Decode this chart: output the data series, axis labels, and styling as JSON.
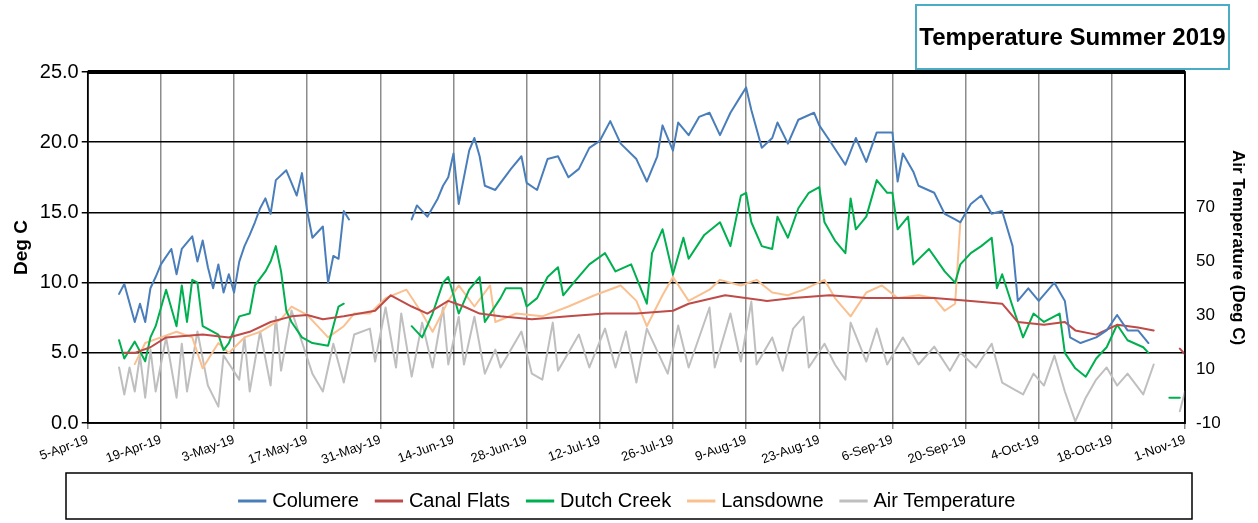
{
  "chart_data": {
    "type": "line",
    "title": "Temperature Summer 2019",
    "ylabel": "Deg C",
    "y2label": "Air Temperature (Deg C)",
    "xlim": [
      "2019-04-05",
      "2019-11-01"
    ],
    "xticks": [
      {
        "value": "2019-04-05",
        "label": "5-Apr-19"
      },
      {
        "value": "2019-04-19",
        "label": "19-Apr-19"
      },
      {
        "value": "2019-05-03",
        "label": "3-May-19"
      },
      {
        "value": "2019-05-17",
        "label": "17-May-19"
      },
      {
        "value": "2019-05-31",
        "label": "31-May-19"
      },
      {
        "value": "2019-06-14",
        "label": "14-Jun-19"
      },
      {
        "value": "2019-06-28",
        "label": "28-Jun-19"
      },
      {
        "value": "2019-07-12",
        "label": "12-Jul-19"
      },
      {
        "value": "2019-07-26",
        "label": "26-Jul-19"
      },
      {
        "value": "2019-08-09",
        "label": "9-Aug-19"
      },
      {
        "value": "2019-08-23",
        "label": "23-Aug-19"
      },
      {
        "value": "2019-09-06",
        "label": "6-Sep-19"
      },
      {
        "value": "2019-09-20",
        "label": "20-Sep-19"
      },
      {
        "value": "2019-10-04",
        "label": "4-Oct-19"
      },
      {
        "value": "2019-10-18",
        "label": "18-Oct-19"
      },
      {
        "value": "2019-11-01",
        "label": "1-Nov-19"
      }
    ],
    "ylim": [
      0,
      25
    ],
    "yticks": [
      {
        "value": 0,
        "label": "0.0"
      },
      {
        "value": 5,
        "label": "5.0"
      },
      {
        "value": 10,
        "label": "10.0"
      },
      {
        "value": 15,
        "label": "15.0"
      },
      {
        "value": 20,
        "label": "20.0"
      },
      {
        "value": 25,
        "label": "25.0"
      }
    ],
    "y2lim": [
      -10,
      120
    ],
    "y2ticks": [
      -10,
      10,
      30,
      50,
      70
    ],
    "grid": true,
    "legend": "bottom",
    "series": [
      {
        "name": "Columere",
        "color": "#4a7ebb",
        "x": [
          "2019-04-11",
          "2019-04-12",
          "2019-04-14",
          "2019-04-15",
          "2019-04-16",
          "2019-04-17",
          "2019-04-18",
          "2019-04-19",
          "2019-04-21",
          "2019-04-22",
          "2019-04-23",
          "2019-04-25",
          "2019-04-26",
          "2019-04-27",
          "2019-04-28",
          "2019-04-29",
          "2019-04-30",
          "2019-05-01",
          "2019-05-02",
          "2019-05-03",
          "2019-05-04",
          "2019-05-05",
          "2019-05-06",
          "2019-05-07",
          "2019-05-08",
          "2019-05-09",
          "2019-05-10",
          "2019-05-11",
          "2019-05-13",
          "2019-05-14",
          "2019-05-15",
          "2019-05-16",
          "2019-05-17",
          "2019-05-18",
          "2019-05-20",
          "2019-05-21",
          "2019-05-22",
          "2019-05-23",
          "2019-05-24",
          "2019-05-25",
          "2019-05-30",
          "2019-06-06",
          "2019-06-07",
          "2019-06-09",
          "2019-06-11",
          "2019-06-12",
          "2019-06-13",
          "2019-06-14",
          "2019-06-15",
          "2019-06-17",
          "2019-06-18",
          "2019-06-19",
          "2019-06-20",
          "2019-06-22",
          "2019-06-25",
          "2019-06-27",
          "2019-06-28",
          "2019-06-30",
          "2019-07-02",
          "2019-07-04",
          "2019-07-06",
          "2019-07-08",
          "2019-07-10",
          "2019-07-12",
          "2019-07-14",
          "2019-07-16",
          "2019-07-19",
          "2019-07-21",
          "2019-07-23",
          "2019-07-24",
          "2019-07-26",
          "2019-07-27",
          "2019-07-29",
          "2019-07-31",
          "2019-08-02",
          "2019-08-04",
          "2019-08-06",
          "2019-08-08",
          "2019-08-09",
          "2019-08-10",
          "2019-08-12",
          "2019-08-14",
          "2019-08-15",
          "2019-08-17",
          "2019-08-19",
          "2019-08-22",
          "2019-08-23",
          "2019-08-25",
          "2019-08-28",
          "2019-08-30",
          "2019-09-01",
          "2019-09-03",
          "2019-09-06",
          "2019-09-07",
          "2019-09-08",
          "2019-09-10",
          "2019-09-11",
          "2019-09-14",
          "2019-09-16",
          "2019-09-18",
          "2019-09-19",
          "2019-09-21",
          "2019-09-23",
          "2019-09-25",
          "2019-09-27",
          "2019-09-29",
          "2019-09-30",
          "2019-10-02",
          "2019-10-04",
          "2019-10-07",
          "2019-10-09",
          "2019-10-10",
          "2019-10-12",
          "2019-10-15",
          "2019-10-17",
          "2019-10-19",
          "2019-10-21",
          "2019-10-23",
          "2019-10-25"
        ],
        "values": [
          9.2,
          9.9,
          7.2,
          8.5,
          7.2,
          9.6,
          10.4,
          11.3,
          12.4,
          10.6,
          12.4,
          13.3,
          11.5,
          13.0,
          11.1,
          9.6,
          11.3,
          9.3,
          10.6,
          9.3,
          11.5,
          12.6,
          13.4,
          14.3,
          15.3,
          16.0,
          14.9,
          17.3,
          18.0,
          17.1,
          16.2,
          17.8,
          15.1,
          13.2,
          14.0,
          10.0,
          11.9,
          11.7,
          15.1,
          14.5,
          null,
          14.5,
          15.5,
          14.7,
          16.0,
          16.9,
          17.5,
          19.2,
          15.6,
          19.4,
          20.3,
          19.0,
          16.9,
          16.6,
          18.1,
          19.0,
          17.1,
          16.6,
          18.8,
          19.0,
          17.5,
          18.1,
          19.6,
          20.1,
          21.5,
          19.9,
          18.8,
          17.2,
          19.0,
          21.2,
          19.4,
          21.4,
          20.5,
          21.8,
          22.1,
          20.5,
          22.1,
          23.3,
          23.9,
          22.3,
          19.6,
          20.3,
          21.4,
          19.9,
          21.6,
          22.1,
          21.2,
          20.1,
          18.4,
          20.3,
          18.6,
          20.7,
          20.7,
          17.2,
          19.2,
          17.9,
          16.9,
          16.4,
          14.9,
          14.5,
          14.3,
          15.6,
          16.2,
          14.9,
          15.1,
          12.6,
          8.7,
          9.6,
          8.7,
          10.0,
          8.7,
          6.1,
          5.7,
          6.1,
          6.6,
          7.7,
          6.6,
          6.6,
          5.7
        ]
      },
      {
        "name": "Canal Flats",
        "color": "#be4b48",
        "x": [
          "2019-04-12",
          "2019-04-14",
          "2019-04-17",
          "2019-04-20",
          "2019-04-27",
          "2019-05-02",
          "2019-05-06",
          "2019-05-10",
          "2019-05-14",
          "2019-05-17",
          "2019-05-20",
          "2019-05-24",
          "2019-05-27",
          "2019-05-30",
          "2019-06-02",
          "2019-06-06",
          "2019-06-09",
          "2019-06-13",
          "2019-06-16",
          "2019-06-19",
          "2019-06-23",
          "2019-06-29",
          "2019-07-06",
          "2019-07-13",
          "2019-07-19",
          "2019-07-26",
          "2019-07-29",
          "2019-08-05",
          "2019-08-13",
          "2019-08-18",
          "2019-08-25",
          "2019-09-01",
          "2019-09-11",
          "2019-09-14",
          "2019-09-21",
          "2019-09-27",
          "2019-09-30",
          "2019-10-05",
          "2019-10-09",
          "2019-10-11",
          "2019-10-15",
          "2019-10-19",
          "2019-10-23",
          "2019-10-26",
          "2019-10-28",
          "2019-10-31",
          "2019-11-01"
        ],
        "values": [
          5.0,
          5.0,
          5.4,
          6.1,
          6.3,
          6.1,
          6.5,
          7.2,
          7.6,
          7.7,
          7.4,
          7.6,
          7.8,
          8.0,
          9.1,
          8.3,
          7.8,
          8.7,
          8.3,
          7.8,
          7.6,
          7.4,
          7.6,
          7.8,
          7.8,
          8.0,
          8.5,
          9.1,
          8.7,
          8.9,
          9.1,
          8.9,
          8.9,
          8.9,
          8.7,
          8.5,
          7.2,
          7.0,
          7.2,
          6.6,
          6.3,
          7.0,
          6.8,
          6.6,
          null,
          5.3,
          4.9
        ]
      },
      {
        "name": "Dutch Creek",
        "color": "#00b050",
        "x": [
          "2019-04-11",
          "2019-04-12",
          "2019-04-14",
          "2019-04-16",
          "2019-04-17",
          "2019-04-18",
          "2019-04-20",
          "2019-04-22",
          "2019-04-23",
          "2019-04-24",
          "2019-04-25",
          "2019-04-26",
          "2019-04-27",
          "2019-04-30",
          "2019-05-01",
          "2019-05-02",
          "2019-05-04",
          "2019-05-06",
          "2019-05-07",
          "2019-05-09",
          "2019-05-10",
          "2019-05-11",
          "2019-05-12",
          "2019-05-13",
          "2019-05-14",
          "2019-05-16",
          "2019-05-18",
          "2019-05-21",
          "2019-05-23",
          "2019-05-24",
          "2019-05-30",
          "2019-06-06",
          "2019-06-08",
          "2019-06-10",
          "2019-06-12",
          "2019-06-13",
          "2019-06-15",
          "2019-06-17",
          "2019-06-19",
          "2019-06-20",
          "2019-06-23",
          "2019-06-24",
          "2019-06-27",
          "2019-06-28",
          "2019-06-30",
          "2019-07-02",
          "2019-07-04",
          "2019-07-05",
          "2019-07-07",
          "2019-07-10",
          "2019-07-13",
          "2019-07-15",
          "2019-07-18",
          "2019-07-21",
          "2019-07-22",
          "2019-07-24",
          "2019-07-26",
          "2019-07-28",
          "2019-07-29",
          "2019-08-01",
          "2019-08-04",
          "2019-08-06",
          "2019-08-08",
          "2019-08-09",
          "2019-08-10",
          "2019-08-12",
          "2019-08-14",
          "2019-08-15",
          "2019-08-17",
          "2019-08-19",
          "2019-08-21",
          "2019-08-23",
          "2019-08-24",
          "2019-08-26",
          "2019-08-28",
          "2019-08-29",
          "2019-08-30",
          "2019-09-01",
          "2019-09-03",
          "2019-09-05",
          "2019-09-06",
          "2019-09-07",
          "2019-09-09",
          "2019-09-10",
          "2019-09-13",
          "2019-09-16",
          "2019-09-18",
          "2019-09-19",
          "2019-09-21",
          "2019-09-23",
          "2019-09-25",
          "2019-09-26",
          "2019-09-27",
          "2019-09-29",
          "2019-10-01",
          "2019-10-03",
          "2019-10-05",
          "2019-10-08",
          "2019-10-09",
          "2019-10-11",
          "2019-10-13",
          "2019-10-15",
          "2019-10-17",
          "2019-10-19",
          "2019-10-21",
          "2019-10-24",
          "2019-10-25",
          "2019-10-27",
          "2019-10-29",
          "2019-10-31"
        ],
        "values": [
          5.9,
          4.6,
          5.8,
          4.4,
          6.1,
          6.9,
          9.5,
          6.9,
          9.8,
          7.2,
          10.2,
          10.0,
          6.9,
          6.3,
          5.2,
          5.7,
          7.6,
          7.8,
          9.8,
          10.8,
          11.5,
          12.6,
          10.8,
          8.0,
          7.2,
          6.1,
          5.7,
          5.5,
          8.3,
          8.5,
          null,
          6.9,
          6.1,
          7.8,
          10.0,
          10.4,
          7.8,
          9.5,
          10.4,
          7.2,
          8.9,
          9.6,
          9.6,
          8.3,
          8.9,
          10.4,
          11.1,
          9.1,
          10.0,
          11.3,
          12.1,
          10.8,
          11.3,
          8.5,
          12.1,
          13.8,
          10.6,
          13.2,
          11.7,
          13.4,
          14.3,
          12.6,
          16.2,
          16.4,
          14.3,
          12.6,
          12.4,
          14.7,
          13.2,
          15.3,
          16.4,
          16.8,
          14.3,
          13.0,
          12.1,
          16.0,
          13.8,
          14.7,
          17.3,
          16.4,
          16.4,
          13.8,
          14.7,
          11.3,
          12.4,
          10.8,
          10.0,
          11.3,
          12.1,
          12.6,
          13.2,
          9.6,
          10.6,
          8.3,
          6.1,
          7.8,
          7.2,
          7.8,
          5.0,
          3.9,
          3.3,
          4.6,
          5.4,
          7.0,
          5.9,
          5.4,
          5.0,
          null,
          1.8,
          1.8
        ]
      },
      {
        "name": "Lansdowne",
        "color": "#fac090",
        "x": [
          "2019-04-14",
          "2019-04-16",
          "2019-04-19",
          "2019-04-22",
          "2019-04-25",
          "2019-04-27",
          "2019-04-30",
          "2019-05-02",
          "2019-05-05",
          "2019-05-08",
          "2019-05-12",
          "2019-05-14",
          "2019-05-17",
          "2019-05-19",
          "2019-05-21",
          "2019-05-24",
          "2019-05-26",
          "2019-05-29",
          "2019-06-01",
          "2019-06-05",
          "2019-06-08",
          "2019-06-10",
          "2019-06-13",
          "2019-06-15",
          "2019-06-18",
          "2019-06-21",
          "2019-06-22",
          "2019-06-26",
          "2019-07-01",
          "2019-07-06",
          "2019-07-11",
          "2019-07-16",
          "2019-07-19",
          "2019-07-21",
          "2019-07-24",
          "2019-07-26",
          "2019-07-29",
          "2019-08-02",
          "2019-08-04",
          "2019-08-08",
          "2019-08-11",
          "2019-08-14",
          "2019-08-17",
          "2019-08-20",
          "2019-08-24",
          "2019-08-26",
          "2019-08-29",
          "2019-09-01",
          "2019-09-04",
          "2019-09-07",
          "2019-09-11",
          "2019-09-14",
          "2019-09-16",
          "2019-09-18",
          "2019-09-19"
        ],
        "values": [
          4.2,
          5.7,
          6.1,
          6.5,
          6.1,
          3.9,
          5.7,
          5.0,
          6.1,
          6.5,
          7.4,
          8.3,
          7.7,
          6.9,
          6.1,
          6.9,
          7.8,
          7.8,
          8.9,
          9.5,
          7.8,
          6.5,
          8.7,
          9.8,
          8.3,
          9.8,
          7.2,
          7.8,
          7.6,
          8.3,
          9.1,
          9.8,
          8.7,
          6.9,
          9.1,
          10.4,
          8.7,
          9.5,
          10.2,
          9.8,
          10.2,
          9.3,
          9.1,
          9.5,
          10.2,
          8.9,
          7.6,
          9.3,
          9.8,
          8.9,
          9.1,
          8.9,
          8.0,
          8.5,
          14.3
        ]
      },
      {
        "name": "Air Temperature",
        "color": "#bfbfbf",
        "axis": "y2",
        "x": [
          "2019-04-11",
          "2019-04-12",
          "2019-04-13",
          "2019-04-14",
          "2019-04-15",
          "2019-04-16",
          "2019-04-17",
          "2019-04-18",
          "2019-04-20",
          "2019-04-22",
          "2019-04-23",
          "2019-04-24",
          "2019-04-26",
          "2019-04-28",
          "2019-04-30",
          "2019-05-01",
          "2019-05-04",
          "2019-05-05",
          "2019-05-06",
          "2019-05-08",
          "2019-05-10",
          "2019-05-11",
          "2019-05-12",
          "2019-05-14",
          "2019-05-18",
          "2019-05-20",
          "2019-05-22",
          "2019-05-24",
          "2019-05-26",
          "2019-05-29",
          "2019-05-30",
          "2019-06-01",
          "2019-06-03",
          "2019-06-04",
          "2019-06-06",
          "2019-06-08",
          "2019-06-10",
          "2019-06-12",
          "2019-06-13",
          "2019-06-15",
          "2019-06-16",
          "2019-06-18",
          "2019-06-20",
          "2019-06-22",
          "2019-06-23",
          "2019-06-27",
          "2019-06-29",
          "2019-07-01",
          "2019-07-03",
          "2019-07-04",
          "2019-07-08",
          "2019-07-10",
          "2019-07-13",
          "2019-07-15",
          "2019-07-17",
          "2019-07-19",
          "2019-07-21",
          "2019-07-25",
          "2019-07-27",
          "2019-07-29",
          "2019-08-02",
          "2019-08-03",
          "2019-08-06",
          "2019-08-08",
          "2019-08-10",
          "2019-08-11",
          "2019-08-14",
          "2019-08-16",
          "2019-08-18",
          "2019-08-20",
          "2019-08-21",
          "2019-08-24",
          "2019-08-26",
          "2019-08-28",
          "2019-08-29",
          "2019-09-01",
          "2019-09-03",
          "2019-09-05",
          "2019-09-08",
          "2019-09-11",
          "2019-09-14",
          "2019-09-17",
          "2019-09-19",
          "2019-09-22",
          "2019-09-25",
          "2019-09-27",
          "2019-10-01",
          "2019-10-03",
          "2019-10-05",
          "2019-10-07",
          "2019-10-09",
          "2019-10-11",
          "2019-10-13",
          "2019-10-15",
          "2019-10-17",
          "2019-10-19",
          "2019-10-21",
          "2019-10-24",
          "2019-10-26",
          "2019-10-28",
          "2019-10-31",
          "2019-11-01"
        ],
        "values": [
          10.6,
          0.6,
          10.6,
          1.7,
          15.0,
          -0.6,
          17.2,
          1.7,
          21.7,
          -0.6,
          19.4,
          1.7,
          23.9,
          3.9,
          -3.9,
          15.0,
          6.1,
          21.7,
          1.7,
          23.9,
          3.9,
          29.4,
          9.4,
          31.7,
          8.3,
          1.7,
          19.4,
          5.0,
          22.8,
          25.0,
          12.8,
          32.8,
          10.6,
          30.6,
          7.2,
          27.2,
          10.6,
          32.8,
          11.7,
          29.4,
          11.7,
          29.4,
          8.3,
          17.2,
          10.6,
          23.9,
          8.3,
          6.1,
          27.2,
          9.4,
          22.8,
          10.6,
          25.0,
          10.6,
          23.9,
          5.0,
          25.0,
          8.3,
          26.1,
          10.6,
          32.8,
          10.6,
          30.6,
          12.8,
          35.0,
          11.7,
          21.7,
          9.4,
          25.0,
          29.4,
          10.6,
          19.4,
          11.7,
          6.1,
          27.2,
          12.8,
          25.0,
          11.7,
          21.7,
          11.7,
          18.3,
          9.4,
          16.1,
          10.6,
          19.4,
          5.0,
          0.6,
          8.3,
          3.9,
          15.0,
          1.7,
          -9.4,
          -0.6,
          6.1,
          10.6,
          3.9,
          8.3,
          0.6,
          11.7,
          null,
          -5.6,
          1.7
        ]
      }
    ]
  }
}
